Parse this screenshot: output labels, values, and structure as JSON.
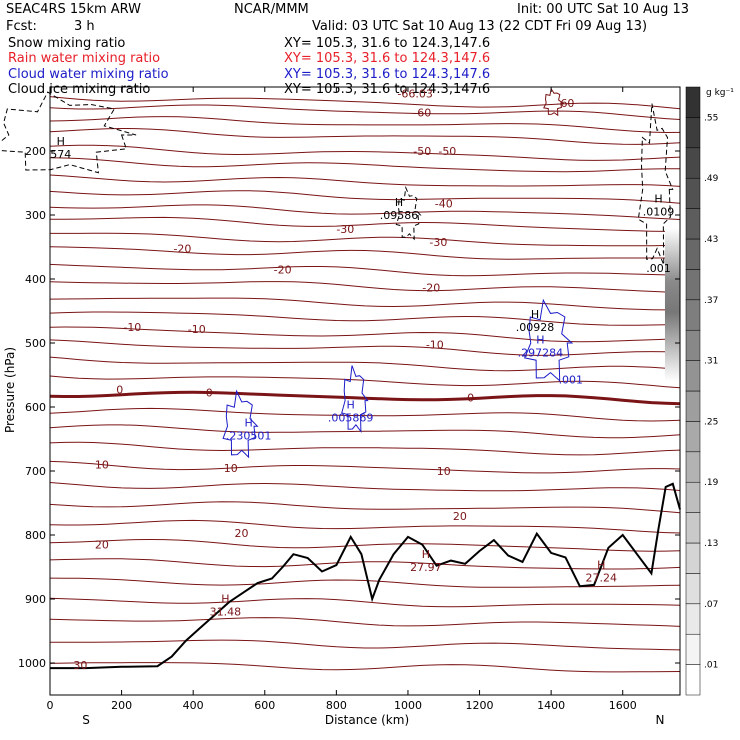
{
  "header": {
    "model": "SEAC4RS 15km ARW",
    "center": "NCAR/MMM",
    "init": "Init: 00 UTC Sat 10 Aug 13",
    "fcst_label": "Fcst:",
    "fcst_value": "3 h",
    "valid": "Valid: 03 UTC Sat 10 Aug 13 (22 CDT Fri 09 Aug 13)"
  },
  "fields": [
    {
      "name": "Snow mixing ratio",
      "xy": "XY= 105.3, 31.6 to 124.3,147.6",
      "color": "#000000"
    },
    {
      "name": "Rain water mixing ratio",
      "xy": "XY= 105.3, 31.6 to 124.3,147.6",
      "color": "#e8202a"
    },
    {
      "name": "Cloud water mixing ratio",
      "xy": "XY= 105.3, 31.6 to 124.3,147.6",
      "color": "#1c1cc8"
    },
    {
      "name": "Cloud ice mixing ratio",
      "xy": "XY= 105.3, 31.6 to 124.3,147.6",
      "color": "#000000"
    }
  ],
  "colors": {
    "temperature_contour": "#7a1416",
    "terrain": "#000000",
    "cloud_water": "#1c1cc8",
    "snow": "#000000"
  },
  "colorbar": {
    "unit": "g kg⁻¹",
    "ticks": [
      ".01",
      ".07",
      ".13",
      ".19",
      ".25",
      ".31",
      ".37",
      ".43",
      ".49",
      ".55"
    ]
  },
  "chart_data": {
    "type": "contour",
    "xlabel": "Distance (km)",
    "ylabel": "Pressure (hPa)",
    "xlim": [
      0,
      1760
    ],
    "ylim": [
      1050,
      100
    ],
    "xticks": [
      0,
      200,
      400,
      600,
      800,
      1000,
      1200,
      1400,
      1600
    ],
    "yticks": [
      200,
      300,
      400,
      500,
      600,
      700,
      800,
      900,
      1000
    ],
    "x_end_labels": {
      "left": "S",
      "right": "N"
    },
    "temperature_contours": [
      {
        "label": "-66.03",
        "x": 1020,
        "p": 110
      },
      {
        "label": "-60",
        "x": 1440,
        "p": 125
      },
      {
        "label": "-60",
        "x": 1040,
        "p": 140
      },
      {
        "label": "-50",
        "x": 1040,
        "p": 200
      },
      {
        "label": "-50",
        "x": 1110,
        "p": 200
      },
      {
        "label": "-40",
        "x": 1100,
        "p": 282
      },
      {
        "label": "-30",
        "x": 825,
        "p": 322
      },
      {
        "label": "-30",
        "x": 1085,
        "p": 342
      },
      {
        "label": "-20",
        "x": 370,
        "p": 352
      },
      {
        "label": "-20",
        "x": 650,
        "p": 385
      },
      {
        "label": "-20",
        "x": 1065,
        "p": 413
      },
      {
        "label": "-10",
        "x": 230,
        "p": 475
      },
      {
        "label": "-10",
        "x": 410,
        "p": 478
      },
      {
        "label": "-10",
        "x": 1075,
        "p": 502
      },
      {
        "label": "0",
        "x": 195,
        "p": 573
      },
      {
        "label": "0",
        "x": 445,
        "p": 577
      },
      {
        "label": "0",
        "x": 1175,
        "p": 585
      },
      {
        "label": "10",
        "x": 145,
        "p": 690
      },
      {
        "label": "10",
        "x": 505,
        "p": 695
      },
      {
        "label": "10",
        "x": 1100,
        "p": 700
      },
      {
        "label": "20",
        "x": 145,
        "p": 815
      },
      {
        "label": "20",
        "x": 535,
        "p": 797
      },
      {
        "label": "20",
        "x": 1145,
        "p": 770
      },
      {
        "label": "30",
        "x": 85,
        "p": 1003
      }
    ],
    "maxima": [
      {
        "label": "H",
        "value": "574",
        "x": 30,
        "p": 200,
        "field": "snow"
      },
      {
        "label": "H",
        "value": ".09586",
        "x": 975,
        "p": 295,
        "field": "snow"
      },
      {
        "label": "H",
        "value": ".0109",
        "x": 1700,
        "p": 290,
        "field": "snow"
      },
      {
        "label": "",
        "value": ".001",
        "x": 1700,
        "p": 378,
        "field": "snow"
      },
      {
        "label": "H",
        "value": ".00928",
        "x": 1355,
        "p": 470,
        "field": "cloud_ice"
      },
      {
        "label": "H",
        "value": ".297284",
        "x": 1370,
        "p": 510,
        "field": "cloud_water"
      },
      {
        "label": "",
        "value": ".001",
        "x": 1455,
        "p": 552,
        "field": "cloud_water"
      },
      {
        "label": "H",
        "value": ".005869",
        "x": 840,
        "p": 612,
        "field": "cloud_water"
      },
      {
        "label": "H",
        "value": ".230501",
        "x": 555,
        "p": 640,
        "field": "cloud_water"
      },
      {
        "label": "H",
        "value": "27.97",
        "x": 1050,
        "p": 845,
        "field": "temperature"
      },
      {
        "label": "H",
        "value": "27.24",
        "x": 1540,
        "p": 862,
        "field": "temperature"
      },
      {
        "label": "H",
        "value": "31.48",
        "x": 490,
        "p": 915,
        "field": "temperature"
      }
    ],
    "terrain_surface_pressure": {
      "x": [
        0,
        100,
        200,
        300,
        340,
        380,
        420,
        460,
        500,
        540,
        580,
        620,
        650,
        680,
        720,
        760,
        800,
        840,
        870,
        900,
        920,
        960,
        1000,
        1040,
        1080,
        1120,
        1160,
        1200,
        1240,
        1280,
        1320,
        1360,
        1400,
        1440,
        1480,
        1520,
        1560,
        1600,
        1640,
        1680,
        1700,
        1720,
        1740,
        1760
      ],
      "p": [
        1008,
        1008,
        1006,
        1005,
        990,
        965,
        945,
        925,
        905,
        890,
        875,
        868,
        850,
        830,
        836,
        857,
        847,
        803,
        830,
        900,
        870,
        830,
        803,
        815,
        848,
        840,
        845,
        825,
        808,
        832,
        842,
        798,
        828,
        835,
        880,
        878,
        820,
        800,
        830,
        860,
        790,
        725,
        720,
        760
      ]
    }
  }
}
